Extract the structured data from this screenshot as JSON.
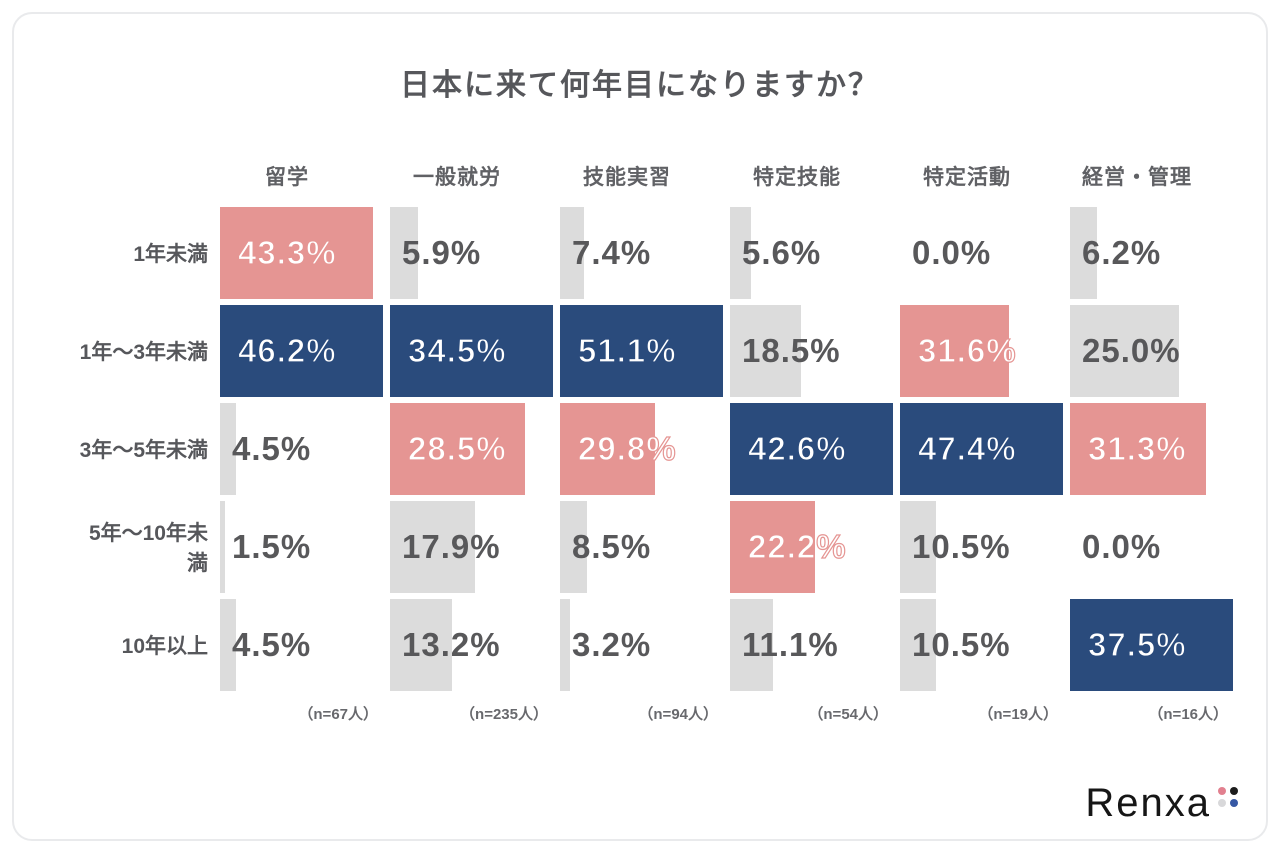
{
  "title": "日本に来て何年目になりますか？",
  "chart_data": {
    "type": "bar",
    "orientation": "horizontal",
    "title": "日本に来て何年目になりますか？",
    "note": "Each column of visa-status groups shows % distribution; largest value per column is highlighted blue, second largest pink, others gray; bar widths are normalized to each column's max.",
    "row_labels": [
      "1年未満",
      "1年〜3年未満",
      "3年〜5年未満",
      "5年〜10年未満",
      "10年以上"
    ],
    "value_suffix": "%",
    "columns": [
      {
        "label": "留学",
        "n_label": "（n=67人）",
        "values": [
          43.3,
          46.2,
          4.5,
          1.5,
          4.5
        ],
        "styles": [
          "pink",
          "blue",
          "gray",
          "gray",
          "gray"
        ]
      },
      {
        "label": "一般就労",
        "n_label": "（n=235人）",
        "values": [
          5.9,
          34.5,
          28.5,
          17.9,
          13.2
        ],
        "styles": [
          "gray",
          "blue",
          "pink",
          "gray",
          "gray"
        ]
      },
      {
        "label": "技能実習",
        "n_label": "（n=94人）",
        "values": [
          7.4,
          51.1,
          29.8,
          8.5,
          3.2
        ],
        "styles": [
          "gray",
          "blue",
          "pink",
          "gray",
          "gray"
        ]
      },
      {
        "label": "特定技能",
        "n_label": "（n=54人）",
        "values": [
          5.6,
          18.5,
          42.6,
          22.2,
          11.1
        ],
        "styles": [
          "gray",
          "gray",
          "blue",
          "pink",
          "gray"
        ]
      },
      {
        "label": "特定活動",
        "n_label": "（n=19人）",
        "values": [
          0.0,
          31.6,
          47.4,
          10.5,
          10.5
        ],
        "styles": [
          "none",
          "pink",
          "blue",
          "gray",
          "gray"
        ]
      },
      {
        "label": "経営・管理",
        "n_label": "（n=16人）",
        "values": [
          6.2,
          25.0,
          31.3,
          0.0,
          37.5
        ],
        "styles": [
          "gray",
          "gray",
          "pink",
          "none",
          "blue"
        ]
      }
    ],
    "colors": {
      "blue": "#2a4b7c",
      "pink": "#e59593",
      "gray": "#dcdcdc",
      "text_dark": "#58585a"
    }
  },
  "logo": {
    "text": "Renxa",
    "dot_colors": [
      "#e2808f",
      "#1c1c1c",
      "#d8d8da",
      "#3658a4"
    ]
  }
}
